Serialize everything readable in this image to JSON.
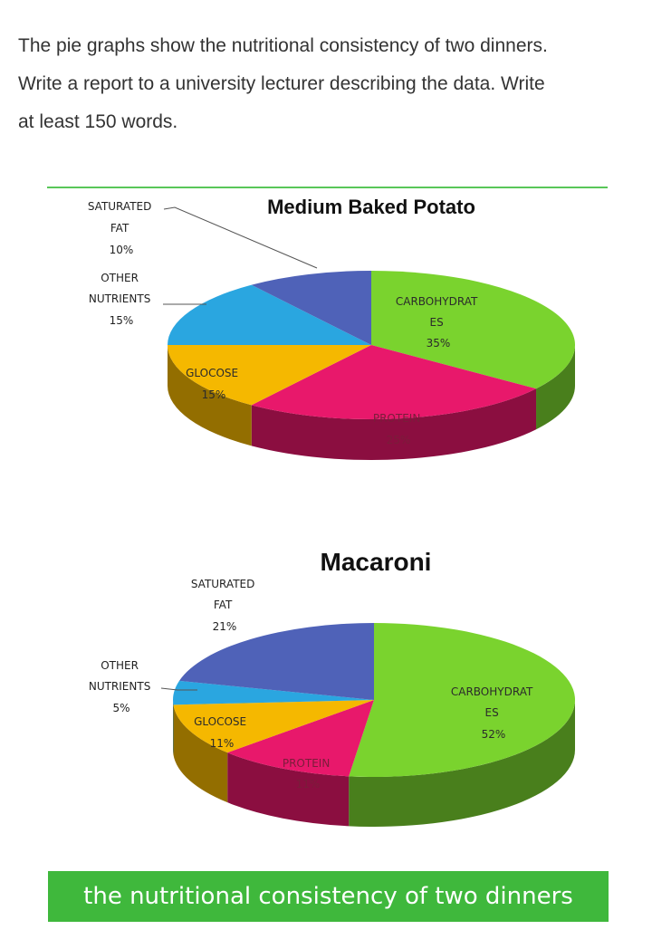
{
  "prompt": {
    "lines": [
      "The pie graphs show the nutritional consistency of two dinners.",
      "Write a report to a university lecturer describing the data. Write",
      "at least 150 words."
    ]
  },
  "colors": {
    "carbohydrates": "#7ad32e",
    "protein": "#e8186b",
    "glucose": "#f5b800",
    "other_nutrients": "#2aa6e0",
    "saturated_fat": "#4f62b8",
    "banner": "#3fb83c"
  },
  "chart_data": [
    {
      "type": "pie",
      "style": "3d",
      "title": "Medium Baked Potato",
      "slices": [
        {
          "key": "carbohydrates",
          "label_lines": [
            "CARBOHYDRAT",
            "ES",
            "35%"
          ],
          "value": 35
        },
        {
          "key": "protein",
          "label_lines": [
            "PROTEIN",
            "25%"
          ],
          "value": 25
        },
        {
          "key": "glucose",
          "label_lines": [
            "GLOCOSE",
            "15%"
          ],
          "value": 15
        },
        {
          "key": "other_nutrients",
          "label_lines": [
            "OTHER",
            "NUTRIENTS",
            "15%"
          ],
          "value": 15
        },
        {
          "key": "saturated_fat",
          "label_lines": [
            "SATURATED",
            "FAT",
            "10%"
          ],
          "value": 10
        }
      ]
    },
    {
      "type": "pie",
      "style": "3d",
      "title": "Macaroni",
      "slices": [
        {
          "key": "carbohydrates",
          "label_lines": [
            "CARBOHYDRAT",
            "ES",
            "52%"
          ],
          "value": 52
        },
        {
          "key": "protein",
          "label_lines": [
            "PROTEIN",
            "11%"
          ],
          "value": 11
        },
        {
          "key": "glucose",
          "label_lines": [
            "GLOCOSE",
            "11%"
          ],
          "value": 11
        },
        {
          "key": "other_nutrients",
          "label_lines": [
            "OTHER",
            "NUTRIENTS",
            "5%"
          ],
          "value": 5
        },
        {
          "key": "saturated_fat",
          "label_lines": [
            "SATURATED",
            "FAT",
            "21%"
          ],
          "value": 21
        }
      ]
    }
  ],
  "banner_text": "the nutritional consistency of two dinners"
}
